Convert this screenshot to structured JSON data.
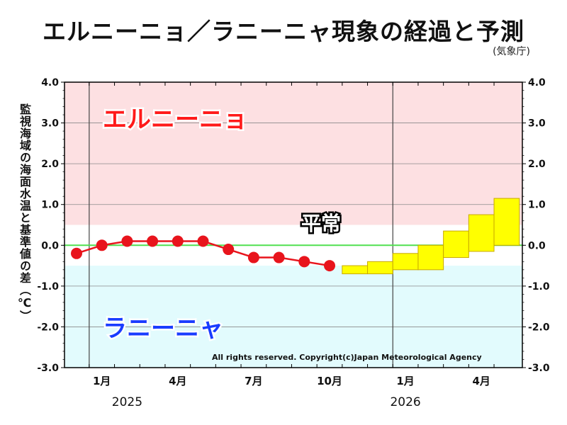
{
  "title": "エルニーニョ／ラニーニャ現象の経過と予測",
  "source": "(気象庁)",
  "ylabel": "監視海域の海面水温と基準値の差（℃）",
  "copyright": "All rights reserved. Copyright(c)Japan Meteorological Agency",
  "region_labels": {
    "el_nino": "エルニーニョ",
    "normal": "平常",
    "la_nina": "ラニーニャ"
  },
  "colors": {
    "el_nino_zone": "#fde0e2",
    "la_nina_zone": "#e2fbfd",
    "observed": "#e8141c",
    "forecast_fill": "#ffff00",
    "forecast_edge": "#c8a800",
    "zero_line": "#50e050",
    "el_nino_text": "#ff1a1a",
    "la_nina_text": "#1a3cff"
  },
  "chart_data": {
    "type": "line",
    "ylim": [
      -3.0,
      4.0
    ],
    "yticks": [
      "4.0",
      "3.0",
      "2.0",
      "1.0",
      "0.0",
      "-1.0",
      "-2.0",
      "-3.0"
    ],
    "thresholds": {
      "el_nino": 0.5,
      "la_nina": -0.5
    },
    "x_month_labels": [
      {
        "month": "2025-01",
        "label": "1月"
      },
      {
        "month": "2025-04",
        "label": "4月"
      },
      {
        "month": "2025-07",
        "label": "7月"
      },
      {
        "month": "2025-10",
        "label": "10月"
      },
      {
        "month": "2026-01",
        "label": "1月"
      },
      {
        "month": "2026-04",
        "label": "4月"
      }
    ],
    "year_labels": [
      {
        "month": "2025-02",
        "label": "2025"
      },
      {
        "month": "2026-01",
        "label": "2026"
      }
    ],
    "year_dividers": [
      "2025-01",
      "2026-01"
    ],
    "observed": {
      "x": [
        "2024-12",
        "2025-01",
        "2025-02",
        "2025-03",
        "2025-04",
        "2025-05",
        "2025-06",
        "2025-07",
        "2025-08",
        "2025-09",
        "2025-10"
      ],
      "y": [
        -0.2,
        0.0,
        0.1,
        0.1,
        0.1,
        0.1,
        -0.1,
        -0.3,
        -0.3,
        -0.4,
        -0.5
      ]
    },
    "forecast": {
      "x": [
        "2025-11",
        "2025-12",
        "2026-01",
        "2026-02",
        "2026-03",
        "2026-04",
        "2026-05"
      ],
      "low": [
        -0.7,
        -0.7,
        -0.6,
        -0.6,
        -0.3,
        -0.15,
        0.0
      ],
      "high": [
        -0.5,
        -0.4,
        -0.2,
        0.0,
        0.35,
        0.75,
        1.15
      ]
    }
  }
}
